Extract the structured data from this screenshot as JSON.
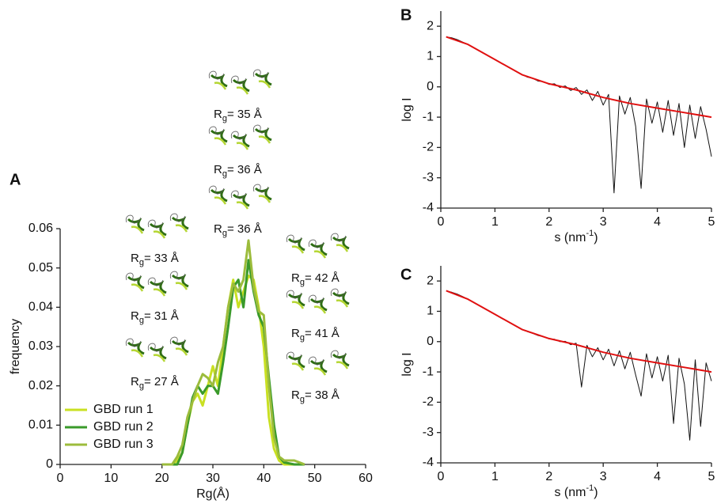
{
  "chart_data": [
    {
      "type": "line",
      "panel_label": "A",
      "xlabel": "Rg(Å)",
      "ylabel": "frequency",
      "xlim": [
        0,
        60
      ],
      "ylim": [
        0,
        0.06
      ],
      "xticks": [
        0,
        10,
        20,
        30,
        40,
        50,
        60
      ],
      "yticks": [
        0,
        0.01,
        0.02,
        0.03,
        0.04,
        0.05,
        0.06
      ],
      "legend": "lower left",
      "x": [
        20,
        22,
        23,
        24,
        25,
        26,
        27,
        28,
        29,
        30,
        31,
        32,
        33,
        34,
        35,
        36,
        37,
        38,
        39,
        40,
        41,
        42,
        43,
        44,
        46,
        48
      ],
      "series": [
        {
          "name": "GBD run 1",
          "color": "#c9e022",
          "values": [
            0,
            0,
            0.001,
            0.003,
            0.01,
            0.016,
            0.018,
            0.015,
            0.02,
            0.025,
            0.02,
            0.03,
            0.04,
            0.047,
            0.04,
            0.044,
            0.048,
            0.047,
            0.04,
            0.03,
            0.012,
            0.004,
            0.001,
            0,
            0,
            0
          ]
        },
        {
          "name": "GBD run 2",
          "color": "#3a9a2a",
          "values": [
            0,
            0,
            0,
            0.003,
            0.01,
            0.017,
            0.02,
            0.018,
            0.02,
            0.02,
            0.018,
            0.026,
            0.035,
            0.045,
            0.047,
            0.04,
            0.052,
            0.044,
            0.038,
            0.035,
            0.022,
            0.01,
            0.002,
            0.0005,
            0,
            0
          ]
        },
        {
          "name": "GBD run 3",
          "color": "#9cbc3c",
          "values": [
            0,
            0,
            0.002,
            0.005,
            0.012,
            0.016,
            0.02,
            0.023,
            0.022,
            0.02,
            0.026,
            0.03,
            0.04,
            0.046,
            0.044,
            0.047,
            0.057,
            0.045,
            0.039,
            0.038,
            0.02,
            0.007,
            0.002,
            0.001,
            0.001,
            0
          ]
        }
      ],
      "annotations": [
        {
          "symbol": "R",
          "subscript": "g",
          "text": "= 35 Å"
        },
        {
          "symbol": "R",
          "subscript": "g",
          "text": "= 36 Å"
        },
        {
          "symbol": "R",
          "subscript": "g",
          "text": "= 36 Å"
        },
        {
          "symbol": "R",
          "subscript": "g",
          "text": "= 33 Å"
        },
        {
          "symbol": "R",
          "subscript": "g",
          "text": "= 31 Å"
        },
        {
          "symbol": "R",
          "subscript": "g",
          "text": "= 27 Å"
        },
        {
          "symbol": "R",
          "subscript": "g",
          "text": "= 42 Å"
        },
        {
          "symbol": "R",
          "subscript": "g",
          "text": "= 41 Å"
        },
        {
          "symbol": "R",
          "subscript": "g",
          "text": "= 38 Å"
        }
      ]
    },
    {
      "type": "line",
      "panel_label": "B",
      "xlabel": {
        "text": "s (nm",
        "superscript": "-1",
        "close": ")"
      },
      "ylabel": "log I",
      "xlim": [
        0,
        5
      ],
      "ylim": [
        -4,
        2.5
      ],
      "xticks": [
        0,
        1,
        2,
        3,
        4,
        5
      ],
      "yticks": [
        -4,
        -3,
        -2,
        -1,
        0,
        1,
        2
      ],
      "series": [
        {
          "color": "#111111",
          "x": [
            0.1,
            0.2,
            0.3,
            0.4,
            0.5,
            0.6,
            0.7,
            0.8,
            0.9,
            1.0,
            1.1,
            1.2,
            1.3,
            1.4,
            1.5,
            1.6,
            1.7,
            1.8,
            1.9,
            2.0,
            2.1,
            2.2,
            2.3,
            2.4,
            2.5,
            2.6,
            2.7,
            2.8,
            2.9,
            3.0,
            3.1,
            3.2,
            3.3,
            3.4,
            3.5,
            3.6,
            3.7,
            3.8,
            3.9,
            4.0,
            4.1,
            4.2,
            4.3,
            4.4,
            4.5,
            4.6,
            4.7,
            4.8,
            4.9,
            5.0
          ],
          "values": [
            1.65,
            1.62,
            1.56,
            1.48,
            1.4,
            1.3,
            1.2,
            1.1,
            1.0,
            0.9,
            0.8,
            0.7,
            0.6,
            0.5,
            0.41,
            0.32,
            0.28,
            0.19,
            0.17,
            0.08,
            0.1,
            -0.02,
            0.03,
            -0.12,
            -0.02,
            -0.25,
            -0.1,
            -0.45,
            -0.15,
            -0.6,
            -0.25,
            -3.5,
            -0.3,
            -0.9,
            -0.35,
            -1.3,
            -3.35,
            -0.4,
            -1.2,
            -0.5,
            -1.5,
            -0.45,
            -1.6,
            -0.55,
            -2.0,
            -0.6,
            -1.7,
            -0.65,
            -1.4,
            -2.3
          ]
        },
        {
          "color": "#e01010",
          "x": [
            0.1,
            0.5,
            1.0,
            1.5,
            2.0,
            2.5,
            3.0,
            3.5,
            4.0,
            4.5,
            5.0
          ],
          "values": [
            1.65,
            1.4,
            0.9,
            0.4,
            0.1,
            -0.1,
            -0.35,
            -0.55,
            -0.7,
            -0.85,
            -1.0
          ]
        }
      ]
    },
    {
      "type": "line",
      "panel_label": "C",
      "xlabel": {
        "text": "s (nm",
        "superscript": "-1",
        "close": ")"
      },
      "ylabel": "log I",
      "xlim": [
        0,
        5
      ],
      "ylim": [
        -4,
        2.5
      ],
      "xticks": [
        0,
        1,
        2,
        3,
        4,
        5
      ],
      "yticks": [
        -4,
        -3,
        -2,
        -1,
        0,
        1,
        2
      ],
      "series": [
        {
          "color": "#111111",
          "x": [
            0.1,
            0.2,
            0.3,
            0.4,
            0.5,
            0.6,
            0.7,
            0.8,
            0.9,
            1.0,
            1.1,
            1.2,
            1.3,
            1.4,
            1.5,
            1.6,
            1.7,
            1.8,
            1.9,
            2.0,
            2.1,
            2.2,
            2.3,
            2.4,
            2.5,
            2.6,
            2.7,
            2.8,
            2.9,
            3.0,
            3.1,
            3.2,
            3.3,
            3.4,
            3.5,
            3.6,
            3.7,
            3.8,
            3.9,
            4.0,
            4.1,
            4.2,
            4.3,
            4.4,
            4.5,
            4.6,
            4.7,
            4.8,
            4.9,
            5.0
          ],
          "values": [
            1.67,
            1.63,
            1.57,
            1.49,
            1.4,
            1.3,
            1.2,
            1.1,
            1.0,
            0.9,
            0.8,
            0.7,
            0.6,
            0.5,
            0.41,
            0.33,
            0.27,
            0.2,
            0.16,
            0.09,
            0.08,
            0.0,
            0.01,
            -0.1,
            -0.05,
            -1.5,
            -0.12,
            -0.5,
            -0.2,
            -0.6,
            -0.25,
            -0.8,
            -0.3,
            -0.9,
            -0.35,
            -1.1,
            -1.8,
            -0.4,
            -1.2,
            -0.5,
            -1.3,
            -0.45,
            -2.7,
            -0.55,
            -1.4,
            -3.25,
            -0.6,
            -2.8,
            -0.7,
            -1.3
          ]
        },
        {
          "color": "#e01010",
          "x": [
            0.1,
            0.5,
            1.0,
            1.5,
            2.0,
            2.5,
            3.0,
            3.5,
            4.0,
            4.5,
            5.0
          ],
          "values": [
            1.68,
            1.4,
            0.9,
            0.4,
            0.1,
            -0.1,
            -0.35,
            -0.55,
            -0.7,
            -0.85,
            -1.0
          ]
        }
      ]
    }
  ]
}
